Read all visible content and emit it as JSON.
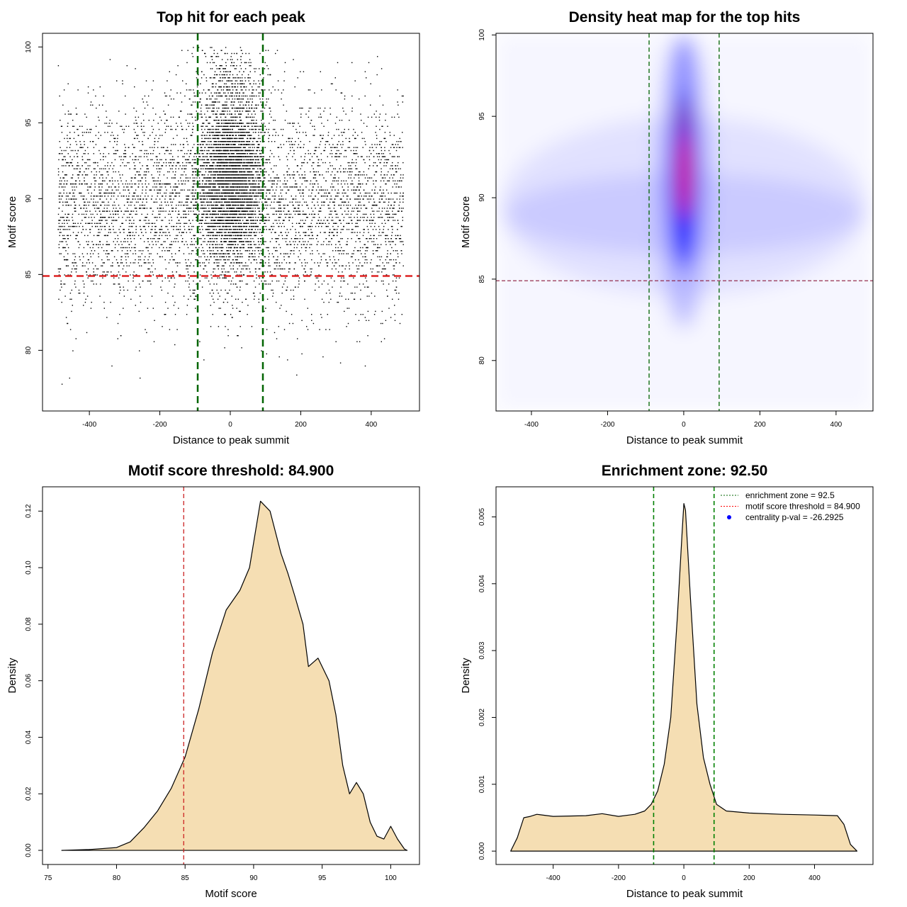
{
  "chart_data": [
    {
      "type": "scatter",
      "title": "Top hit for each peak",
      "xlabel": "Distance to peak summit",
      "ylabel": "Motif score",
      "xlim": [
        -533,
        537
      ],
      "ylim": [
        76,
        100.9
      ],
      "xticks": [
        "-400",
        "-200",
        "0",
        "200",
        "400"
      ],
      "yticks": [
        "80",
        "85",
        "90",
        "95",
        "100"
      ],
      "vlines": [
        -92.5,
        92.5
      ],
      "hline": 84.9,
      "vline_color": "#006400",
      "hline_color": "#dd2222",
      "point_color": "#000000",
      "distribution": "dense points concentrated near 0 distance and scores 86-100; sparse uniform background across -490..490"
    },
    {
      "type": "heatmap",
      "title": "Density heat map for the top hits",
      "xlabel": "Distance to peak summit",
      "ylabel": "Motif score",
      "xlim": [
        -493,
        497
      ],
      "ylim": [
        76.9,
        100.1
      ],
      "xticks": [
        "-400",
        "-200",
        "0",
        "200",
        "400"
      ],
      "yticks": [
        "80",
        "85",
        "90",
        "95",
        "100"
      ],
      "vlines": [
        -91,
        93
      ],
      "hline": 84.9,
      "colors": [
        "#ffffff",
        "#0000ff",
        "#ff0000"
      ],
      "peak": {
        "x": 0,
        "y": 91.6
      }
    },
    {
      "type": "area",
      "title": "Motif score threshold: 84.900",
      "xlabel": "Motif score",
      "ylabel": "Density",
      "xlim": [
        74.6,
        102.1
      ],
      "ylim": [
        -0.005,
        0.1286
      ],
      "xticks": [
        "75",
        "80",
        "85",
        "90",
        "95",
        "100"
      ],
      "yticks": [
        "0.00",
        "0.02",
        "0.04",
        "0.06",
        "0.08",
        "0.10",
        "0.12"
      ],
      "vline": 84.9,
      "fill": "#f5deb3",
      "x": [
        76,
        78,
        80,
        81,
        82,
        83,
        84,
        85,
        86,
        87,
        88,
        89,
        89.7,
        90.5,
        91.2,
        92,
        92.5,
        93,
        93.6,
        94,
        94.7,
        95.5,
        96,
        96.5,
        97,
        97.5,
        98,
        98.5,
        99,
        99.5,
        100,
        100.5,
        101,
        101.2
      ],
      "y": [
        0,
        0.0003,
        0.001,
        0.003,
        0.008,
        0.014,
        0.022,
        0.033,
        0.05,
        0.07,
        0.085,
        0.092,
        0.1,
        0.1235,
        0.12,
        0.105,
        0.098,
        0.09,
        0.08,
        0.065,
        0.068,
        0.06,
        0.048,
        0.03,
        0.02,
        0.024,
        0.02,
        0.01,
        0.005,
        0.004,
        0.0085,
        0.004,
        0.0005,
        0
      ]
    },
    {
      "type": "area",
      "title": "Enrichment zone: 92.50",
      "xlabel": "Distance to peak summit",
      "ylabel": "Density",
      "xlim": [
        -575,
        579
      ],
      "ylim": [
        -0.0002,
        0.00545
      ],
      "xticks": [
        "-400",
        "-200",
        "0",
        "200",
        "400"
      ],
      "yticks": [
        "0.000",
        "0.001",
        "0.002",
        "0.003",
        "0.004",
        "0.005"
      ],
      "vlines": [
        -92.5,
        92.5
      ],
      "fill": "#f5deb3",
      "x": [
        -530,
        -510,
        -490,
        -470,
        -450,
        -400,
        -300,
        -250,
        -200,
        -150,
        -120,
        -100,
        -80,
        -60,
        -40,
        -20,
        -5,
        0,
        5,
        20,
        40,
        60,
        80,
        100,
        130,
        200,
        300,
        400,
        470,
        490,
        510,
        530
      ],
      "y": [
        0,
        0.0002,
        0.0005,
        0.00052,
        0.00055,
        0.00052,
        0.00053,
        0.00056,
        0.00052,
        0.00055,
        0.0006,
        0.0007,
        0.0009,
        0.0013,
        0.002,
        0.0035,
        0.0048,
        0.0052,
        0.0051,
        0.0038,
        0.0022,
        0.0014,
        0.001,
        0.0007,
        0.0006,
        0.00057,
        0.00055,
        0.00054,
        0.00053,
        0.0004,
        0.0001,
        0
      ],
      "legend": {
        "position": "top-right",
        "entries": [
          {
            "label": "enrichment zone = 92.5",
            "color": "#006400",
            "style": "dotted"
          },
          {
            "label": "motif score threshold = 84.900",
            "color": "#ff0000",
            "style": "dotted"
          },
          {
            "label": "centrality p-val = -26.2925",
            "color": "#0000ff",
            "style": "point"
          }
        ]
      }
    }
  ]
}
